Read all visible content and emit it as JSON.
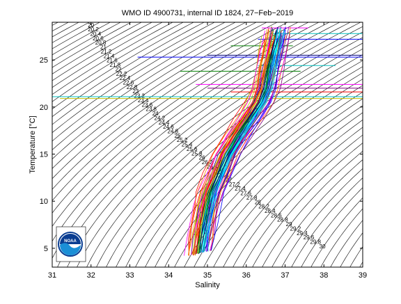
{
  "chart_data": {
    "type": "line",
    "title": "WMO ID 4900731, internal ID 1824, 27−Feb−2019",
    "xlabel": "Salinity",
    "ylabel": "Temperature [°C]",
    "xlim": [
      31,
      39
    ],
    "ylim": [
      3,
      29
    ],
    "xticks": [
      31,
      32,
      33,
      34,
      35,
      36,
      37,
      38,
      39
    ],
    "yticks": [
      5,
      10,
      15,
      20,
      25
    ],
    "xtick_labels": [
      "31",
      "32",
      "33",
      "34",
      "35",
      "36",
      "37",
      "38",
      "39"
    ],
    "ytick_labels": [
      "5",
      "10",
      "15",
      "20",
      "25"
    ],
    "density_contours": {
      "label_values": [
        "20",
        "20.2",
        "20.4",
        "20.6",
        "20.8",
        "21",
        "21.2",
        "21.4",
        "21.6",
        "21.8",
        "22",
        "22.2",
        "22.4",
        "22.6",
        "22.8",
        "23",
        "23.2",
        "23.4",
        "23.6",
        "23.8",
        "24",
        "24.2",
        "24.4",
        "24.6",
        "24.8",
        "25",
        "25.2",
        "25.4",
        "25.6",
        "25.8",
        "26",
        "26.2",
        "26.4",
        "26.6",
        "26.8",
        "27",
        "27.2",
        "27.4",
        "27.6",
        "27.8",
        "28",
        "28.2",
        "28.4",
        "28.6",
        "28.8",
        "29",
        "29.2",
        "29.4",
        "29.6",
        "29.8",
        "30"
      ],
      "color": "#000000"
    },
    "profile_summary": {
      "note_colors": [
        "#ff0000",
        "#0000ff",
        "#008000",
        "#ff00ff",
        "#00bfbf",
        "#bfbf00",
        "#7f007f",
        "#000080",
        "#ff7f00",
        "#00ffff"
      ],
      "mean_profile": [
        {
          "S": 34.8,
          "T": 4.5
        },
        {
          "S": 34.85,
          "T": 6.0
        },
        {
          "S": 34.9,
          "T": 7.5
        },
        {
          "S": 35.0,
          "T": 9.5
        },
        {
          "S": 35.1,
          "T": 11.0
        },
        {
          "S": 35.3,
          "T": 13.0
        },
        {
          "S": 35.5,
          "T": 15.0
        },
        {
          "S": 35.8,
          "T": 17.0
        },
        {
          "S": 36.1,
          "T": 18.8
        },
        {
          "S": 36.35,
          "T": 20.5
        },
        {
          "S": 36.5,
          "T": 22.0
        },
        {
          "S": 36.6,
          "T": 24.0
        },
        {
          "S": 36.7,
          "T": 26.0
        },
        {
          "S": 36.8,
          "T": 28.0
        }
      ]
    },
    "horizontal_segments": [
      {
        "T": 28.4,
        "S0": 36.4,
        "S1": 37.6,
        "color": "#ff00ff"
      },
      {
        "T": 27.8,
        "S0": 36.6,
        "S1": 39.0,
        "color": "#00bfbf"
      },
      {
        "T": 27.2,
        "S0": 36.3,
        "S1": 39.0,
        "color": "#0000ff"
      },
      {
        "T": 26.5,
        "S0": 35.6,
        "S1": 37.2,
        "color": "#008000"
      },
      {
        "T": 25.5,
        "S0": 35.0,
        "S1": 39.0,
        "color": "#000080"
      },
      {
        "T": 25.3,
        "S0": 33.2,
        "S1": 39.0,
        "color": "#0000ff"
      },
      {
        "T": 24.4,
        "S0": 36.3,
        "S1": 38.3,
        "color": "#00bfbf"
      },
      {
        "T": 23.8,
        "S0": 34.3,
        "S1": 37.4,
        "color": "#008000"
      },
      {
        "T": 22.4,
        "S0": 34.7,
        "S1": 39.0,
        "color": "#ff00ff"
      },
      {
        "T": 22.0,
        "S0": 35.0,
        "S1": 39.0,
        "color": "#7f007f"
      },
      {
        "T": 21.6,
        "S0": 35.6,
        "S1": 39.0,
        "color": "#ff0000"
      },
      {
        "T": 21.1,
        "S0": 31.0,
        "S1": 39.0,
        "color": "#00bfbf"
      },
      {
        "T": 20.9,
        "S0": 31.2,
        "S1": 39.0,
        "color": "#bfbf00"
      }
    ]
  },
  "logo": {
    "text": "NOAA",
    "ring_color": "#0a3d91",
    "wave_color": "#1b8fd6"
  }
}
